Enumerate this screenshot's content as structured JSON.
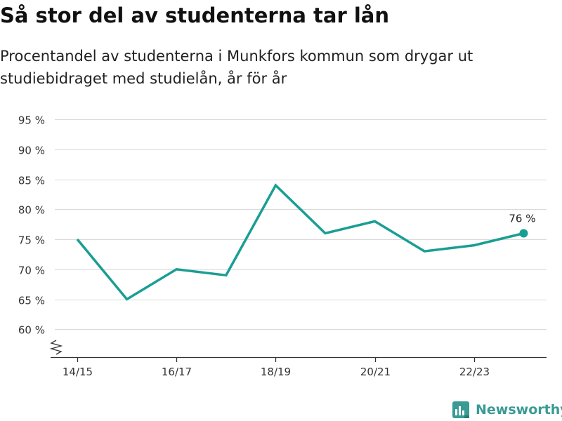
{
  "header": {
    "title": "Så stor del av studenterna tar lån",
    "subtitle": "Procentandel av studenterna i Munkfors kommun som drygar ut studiebidraget med studielån, år för år"
  },
  "footer": {
    "brand": "Newsworthy",
    "logo_icon": "bar-chart-document-icon"
  },
  "colors": {
    "line": "#199e94",
    "grid": "#d9d9d9",
    "axis": "#333333",
    "brand": "#3a9a94"
  },
  "chart_data": {
    "type": "line",
    "title": "Så stor del av studenterna tar lån",
    "x": [
      "14/15",
      "15/16",
      "16/17",
      "17/18",
      "18/19",
      "19/20",
      "20/21",
      "21/22",
      "22/23",
      "23/24"
    ],
    "x_tick_labels": [
      "14/15",
      "16/17",
      "18/19",
      "20/21",
      "22/23"
    ],
    "y_tick_labels": [
      "95 %",
      "90 %",
      "85 %",
      "80 %",
      "75 %",
      "70 %",
      "65 %",
      "60 %"
    ],
    "y_ticks": [
      95,
      90,
      85,
      80,
      75,
      70,
      65,
      60
    ],
    "ylim": [
      55,
      96
    ],
    "y_axis_break": true,
    "grid": true,
    "series": [
      {
        "values": [
          75,
          65,
          70,
          69,
          84,
          76,
          78,
          73,
          74,
          76
        ]
      }
    ],
    "annotations": [
      {
        "x": "23/24",
        "value": 76,
        "label": "76 %"
      }
    ]
  }
}
